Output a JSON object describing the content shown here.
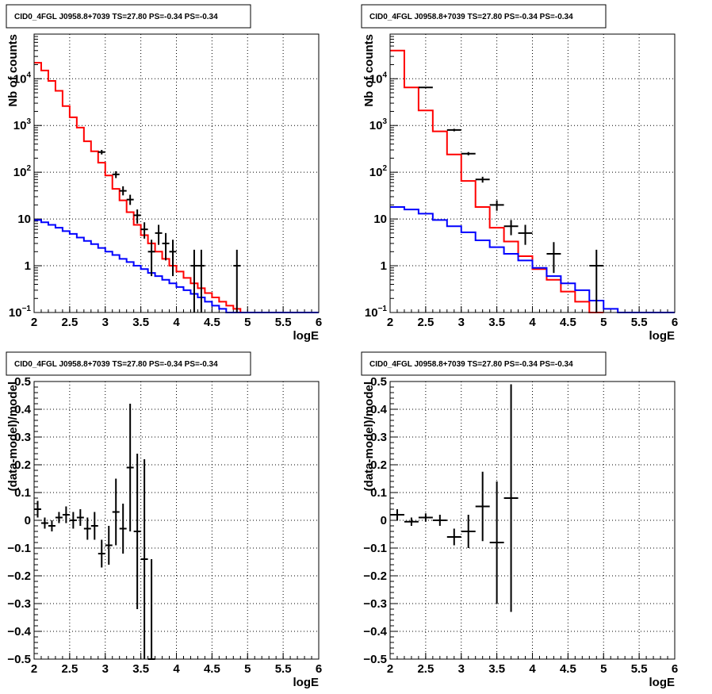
{
  "chart_data": [
    {
      "type": "line",
      "title": "CID0_4FGL J0958.8+7039 TS=27.80 PS=-0.34 PS=-0.34",
      "xlabel": "logE",
      "ylabel": "Nb of counts",
      "xlim": [
        2,
        6
      ],
      "ylim": [
        0.1,
        90000
      ],
      "yscale": "log",
      "grid": true,
      "xticks": [
        "2",
        "2.5",
        "3",
        "3.5",
        "4",
        "4.5",
        "5",
        "5.5",
        "6"
      ],
      "yticks": [
        {
          "value": 0.1,
          "mant": "10",
          "exp": "−1"
        },
        {
          "value": 1,
          "mant": "1",
          "exp": ""
        },
        {
          "value": 10,
          "mant": "10",
          "exp": ""
        },
        {
          "value": 100,
          "mant": "10",
          "exp": "2"
        },
        {
          "value": 1000,
          "mant": "10",
          "exp": "3"
        },
        {
          "value": 10000,
          "mant": "10",
          "exp": "4"
        }
      ],
      "series": [
        {
          "kind": "step",
          "color": "#ff0000",
          "edges": [
            2,
            2.1,
            2.2,
            2.3,
            2.4,
            2.5,
            2.6,
            2.7,
            2.8,
            2.9,
            3.0,
            3.1,
            3.2,
            3.3,
            3.4,
            3.5,
            3.6,
            3.7,
            3.8,
            3.9,
            4.0,
            4.1,
            4.2,
            4.3,
            4.4,
            4.5,
            4.6,
            4.7,
            4.8,
            4.9,
            5.0
          ],
          "values": [
            22000,
            15000,
            9000,
            5500,
            2600,
            1500,
            900,
            460,
            280,
            160,
            85,
            44,
            25,
            14,
            7.5,
            4.5,
            3.0,
            2.0,
            1.4,
            1.0,
            0.75,
            0.55,
            0.42,
            0.33,
            0.26,
            0.21,
            0.17,
            0.14,
            0.12,
            0.1
          ]
        },
        {
          "kind": "step",
          "color": "#0000ff",
          "edges": [
            2,
            2.1,
            2.2,
            2.3,
            2.4,
            2.5,
            2.6,
            2.7,
            2.8,
            2.9,
            3.0,
            3.1,
            3.2,
            3.3,
            3.4,
            3.5,
            3.6,
            3.7,
            3.8,
            3.9,
            4.0,
            4.1,
            4.2,
            4.3,
            4.4,
            4.5,
            4.6,
            4.7,
            4.8,
            4.9,
            5.0,
            5.1,
            5.2,
            5.3,
            5.4,
            5.5,
            5.6,
            5.7,
            5.8,
            5.9,
            6.0
          ],
          "values": [
            9.5,
            8.5,
            7.5,
            6.5,
            5.5,
            4.8,
            4.0,
            3.4,
            2.9,
            2.4,
            2.0,
            1.7,
            1.4,
            1.2,
            1.0,
            0.85,
            0.7,
            0.6,
            0.5,
            0.42,
            0.35,
            0.3,
            0.25,
            0.21,
            0.17,
            0.14,
            0.12,
            0.1,
            0.1,
            0.1,
            0.1,
            0.1,
            0.1,
            0.1,
            0.1,
            0.1,
            0.1,
            0.1,
            0.1,
            0.1
          ]
        },
        {
          "kind": "errorbar",
          "color": "#000000",
          "points": [
            {
              "x": 2.95,
              "y": 270,
              "xerr": 0.05,
              "ylo": 240,
              "yhi": 300
            },
            {
              "x": 3.15,
              "y": 90,
              "xerr": 0.05,
              "ylo": 75,
              "yhi": 105
            },
            {
              "x": 3.25,
              "y": 40,
              "xerr": 0.05,
              "ylo": 32,
              "yhi": 50
            },
            {
              "x": 3.35,
              "y": 26,
              "xerr": 0.05,
              "ylo": 20,
              "yhi": 33
            },
            {
              "x": 3.45,
              "y": 12,
              "xerr": 0.05,
              "ylo": 8,
              "yhi": 16
            },
            {
              "x": 3.55,
              "y": 6,
              "xerr": 0.05,
              "ylo": 3.8,
              "yhi": 8.5
            },
            {
              "x": 3.65,
              "y": 2,
              "xerr": 0.05,
              "ylo": 0.6,
              "yhi": 3.6
            },
            {
              "x": 3.75,
              "y": 5,
              "xerr": 0.05,
              "ylo": 2.8,
              "yhi": 7.5
            },
            {
              "x": 3.85,
              "y": 3,
              "xerr": 0.05,
              "ylo": 1.3,
              "yhi": 5
            },
            {
              "x": 3.95,
              "y": 2,
              "xerr": 0.05,
              "ylo": 0.6,
              "yhi": 3.6
            },
            {
              "x": 4.25,
              "y": 1,
              "xerr": 0.05,
              "ylo": 0.1,
              "yhi": 2.2
            },
            {
              "x": 4.35,
              "y": 1,
              "xerr": 0.05,
              "ylo": 0.1,
              "yhi": 2.2
            },
            {
              "x": 4.85,
              "y": 1,
              "xerr": 0.05,
              "ylo": 0.1,
              "yhi": 2.2
            }
          ]
        }
      ]
    },
    {
      "type": "line",
      "title": "CID0_4FGL J0958.8+7039 TS=27.80 PS=-0.34 PS=-0.34",
      "xlabel": "logE",
      "ylabel": "Nb of counts",
      "xlim": [
        2,
        6
      ],
      "ylim": [
        0.1,
        90000
      ],
      "yscale": "log",
      "grid": true,
      "xticks": [
        "2",
        "2.5",
        "3",
        "3.5",
        "4",
        "4.5",
        "5",
        "5.5",
        "6"
      ],
      "yticks": [
        {
          "value": 0.1,
          "mant": "10",
          "exp": "−1"
        },
        {
          "value": 1,
          "mant": "1",
          "exp": ""
        },
        {
          "value": 10,
          "mant": "10",
          "exp": ""
        },
        {
          "value": 100,
          "mant": "10",
          "exp": "2"
        },
        {
          "value": 1000,
          "mant": "10",
          "exp": "3"
        },
        {
          "value": 10000,
          "mant": "10",
          "exp": "4"
        }
      ],
      "series": [
        {
          "kind": "step",
          "color": "#ff0000",
          "edges": [
            2,
            2.2,
            2.4,
            2.6,
            2.8,
            3.0,
            3.2,
            3.4,
            3.6,
            3.8,
            4.0,
            4.2,
            4.4,
            4.6,
            4.8,
            5.0
          ],
          "values": [
            40000,
            6500,
            2100,
            750,
            240,
            65,
            18,
            6.5,
            3.3,
            1.6,
            0.85,
            0.5,
            0.28,
            0.17,
            0.1
          ]
        },
        {
          "kind": "step",
          "color": "#0000ff",
          "edges": [
            2,
            2.2,
            2.4,
            2.6,
            2.8,
            3.0,
            3.2,
            3.4,
            3.6,
            3.8,
            4.0,
            4.2,
            4.4,
            4.6,
            4.8,
            5.0,
            5.2,
            5.4,
            5.6,
            5.8,
            6.0
          ],
          "values": [
            18,
            16,
            13,
            9.5,
            7,
            5.2,
            3.5,
            2.5,
            1.8,
            1.3,
            0.9,
            0.6,
            0.42,
            0.3,
            0.18,
            0.12,
            0.1,
            0.1,
            0.1,
            0.1
          ]
        },
        {
          "kind": "errorbar",
          "color": "#000000",
          "points": [
            {
              "x": 2.5,
              "y": 6500,
              "xerr": 0.1,
              "ylo": 6300,
              "yhi": 6700
            },
            {
              "x": 2.9,
              "y": 800,
              "xerr": 0.1,
              "ylo": 750,
              "yhi": 850
            },
            {
              "x": 3.1,
              "y": 250,
              "xerr": 0.1,
              "ylo": 230,
              "yhi": 270
            },
            {
              "x": 3.3,
              "y": 70,
              "xerr": 0.1,
              "ylo": 60,
              "yhi": 80
            },
            {
              "x": 3.5,
              "y": 20,
              "xerr": 0.1,
              "ylo": 15,
              "yhi": 25
            },
            {
              "x": 3.7,
              "y": 7,
              "xerr": 0.1,
              "ylo": 4.5,
              "yhi": 9.5
            },
            {
              "x": 3.9,
              "y": 5,
              "xerr": 0.1,
              "ylo": 2.8,
              "yhi": 7.5
            },
            {
              "x": 4.3,
              "y": 1.8,
              "xerr": 0.1,
              "ylo": 0.7,
              "yhi": 3.2
            },
            {
              "x": 4.9,
              "y": 1,
              "xerr": 0.1,
              "ylo": 0.1,
              "yhi": 2.2
            }
          ]
        }
      ]
    },
    {
      "type": "scatter",
      "title": "CID0_4FGL J0958.8+7039 TS=27.80 PS=-0.34 PS=-0.34",
      "xlabel": "logE",
      "ylabel": "(data-model)/model",
      "xlim": [
        2,
        6
      ],
      "ylim": [
        -0.5,
        0.5
      ],
      "grid": true,
      "xticks": [
        "2",
        "2.5",
        "3",
        "3.5",
        "4",
        "4.5",
        "5",
        "5.5",
        "6"
      ],
      "yticks": [
        "−0.5",
        "−0.4",
        "−0.3",
        "−0.2",
        "−0.1",
        "0",
        "0.1",
        "0.2",
        "0.3",
        "0.4",
        "0.5"
      ],
      "series": [
        {
          "kind": "errorbar",
          "color": "#000000",
          "points": [
            {
              "x": 2.05,
              "y": 0.04,
              "xerr": 0.05,
              "yerr": 0.03
            },
            {
              "x": 2.15,
              "y": -0.01,
              "xerr": 0.05,
              "yerr": 0.02
            },
            {
              "x": 2.25,
              "y": -0.02,
              "xerr": 0.05,
              "yerr": 0.02
            },
            {
              "x": 2.35,
              "y": 0.01,
              "xerr": 0.05,
              "yerr": 0.02
            },
            {
              "x": 2.45,
              "y": 0.02,
              "xerr": 0.05,
              "yerr": 0.03
            },
            {
              "x": 2.55,
              "y": 0.0,
              "xerr": 0.05,
              "yerr": 0.03
            },
            {
              "x": 2.65,
              "y": 0.01,
              "xerr": 0.05,
              "yerr": 0.03
            },
            {
              "x": 2.75,
              "y": -0.03,
              "xerr": 0.05,
              "yerr": 0.04
            },
            {
              "x": 2.85,
              "y": -0.02,
              "xerr": 0.05,
              "yerr": 0.05
            },
            {
              "x": 2.95,
              "y": -0.12,
              "xerr": 0.05,
              "yerr": 0.05
            },
            {
              "x": 3.05,
              "y": -0.09,
              "xerr": 0.05,
              "yerr": 0.07
            },
            {
              "x": 3.15,
              "y": 0.03,
              "xerr": 0.05,
              "yerr": 0.12
            },
            {
              "x": 3.25,
              "y": -0.03,
              "xerr": 0.05,
              "yerr": 0.09
            },
            {
              "x": 3.35,
              "y": 0.19,
              "xerr": 0.05,
              "yerr": 0.23
            },
            {
              "x": 3.45,
              "y": -0.04,
              "xerr": 0.05,
              "yerr": 0.28
            },
            {
              "x": 3.55,
              "y": -0.14,
              "xerr": 0.05,
              "yerr": 0.36
            },
            {
              "x": 3.65,
              "y": -0.5,
              "xerr": 0.05,
              "yerr": 0.36
            }
          ]
        }
      ]
    },
    {
      "type": "scatter",
      "title": "CID0_4FGL J0958.8+7039 TS=27.80 PS=-0.34 PS=-0.34",
      "xlabel": "logE",
      "ylabel": "(data-model)/model",
      "xlim": [
        2,
        6
      ],
      "ylim": [
        -0.5,
        0.5
      ],
      "grid": true,
      "xticks": [
        "2",
        "2.5",
        "3",
        "3.5",
        "4",
        "4.5",
        "5",
        "5.5",
        "6"
      ],
      "yticks": [
        "−0.5",
        "−0.4",
        "−0.3",
        "−0.2",
        "−0.1",
        "0",
        "0.1",
        "0.2",
        "0.3",
        "0.4",
        "0.5"
      ],
      "series": [
        {
          "kind": "errorbar",
          "color": "#000000",
          "points": [
            {
              "x": 2.1,
              "y": 0.02,
              "xerr": 0.1,
              "yerr": 0.02
            },
            {
              "x": 2.3,
              "y": -0.005,
              "xerr": 0.1,
              "yerr": 0.015
            },
            {
              "x": 2.5,
              "y": 0.01,
              "xerr": 0.1,
              "yerr": 0.015
            },
            {
              "x": 2.7,
              "y": 0.0,
              "xerr": 0.1,
              "yerr": 0.02
            },
            {
              "x": 2.9,
              "y": -0.06,
              "xerr": 0.1,
              "yerr": 0.03
            },
            {
              "x": 3.1,
              "y": -0.04,
              "xerr": 0.1,
              "yerr": 0.06
            },
            {
              "x": 3.3,
              "y": 0.05,
              "xerr": 0.1,
              "yerr": 0.125
            },
            {
              "x": 3.5,
              "y": -0.08,
              "xerr": 0.1,
              "yerr": 0.22
            },
            {
              "x": 3.7,
              "y": 0.08,
              "xerr": 0.1,
              "yerr": 0.41
            }
          ]
        }
      ]
    }
  ]
}
